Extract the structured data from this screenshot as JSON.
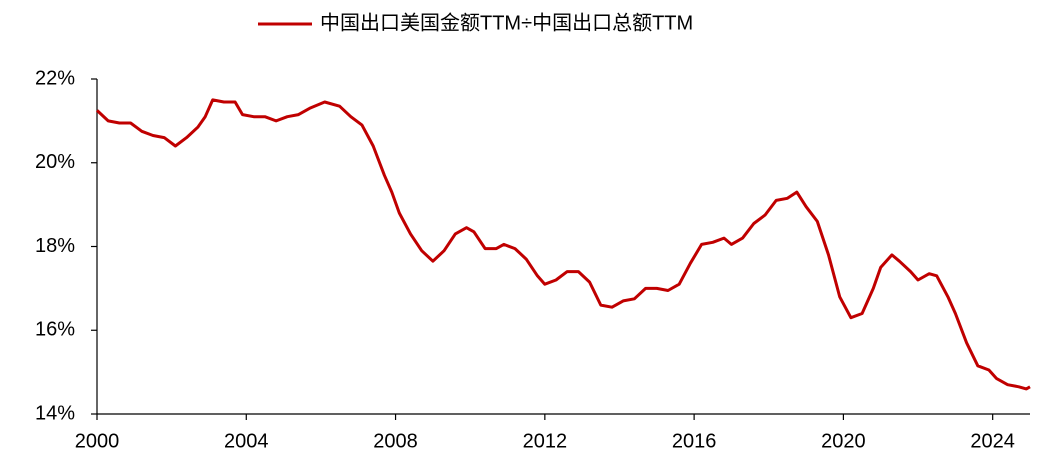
{
  "chart_data": {
    "type": "line",
    "x": [
      2000,
      2000.3,
      2000.6,
      2000.9,
      2001.2,
      2001.5,
      2001.8,
      2002.1,
      2002.4,
      2002.7,
      2002.9,
      2003.1,
      2003.4,
      2003.7,
      2003.9,
      2004.2,
      2004.5,
      2004.8,
      2005.1,
      2005.4,
      2005.7,
      2006.1,
      2006.5,
      2006.8,
      2007.1,
      2007.4,
      2007.7,
      2007.9,
      2008.1,
      2008.4,
      2008.7,
      2009.0,
      2009.3,
      2009.6,
      2009.9,
      2010.1,
      2010.4,
      2010.7,
      2010.9,
      2011.2,
      2011.5,
      2011.8,
      2012.0,
      2012.3,
      2012.6,
      2012.9,
      2013.2,
      2013.5,
      2013.8,
      2014.1,
      2014.4,
      2014.7,
      2015.0,
      2015.3,
      2015.6,
      2015.9,
      2016.2,
      2016.5,
      2016.8,
      2017.0,
      2017.3,
      2017.6,
      2017.9,
      2018.2,
      2018.5,
      2018.75,
      2019.0,
      2019.3,
      2019.6,
      2019.9,
      2020.2,
      2020.5,
      2020.8,
      2021.0,
      2021.3,
      2021.5,
      2021.8,
      2022.0,
      2022.3,
      2022.5,
      2022.8,
      2023.0,
      2023.3,
      2023.6,
      2023.9,
      2024.1,
      2024.4,
      2024.7,
      2024.9,
      2025.0
    ],
    "series": [
      {
        "name": "中国出口美国金额TTM÷中国出口总额TTM",
        "color": "#c00000",
        "values": [
          21.25,
          21.0,
          20.95,
          20.95,
          20.75,
          20.65,
          20.6,
          20.4,
          20.6,
          20.85,
          21.1,
          21.5,
          21.45,
          21.45,
          21.15,
          21.1,
          21.1,
          21.0,
          21.1,
          21.15,
          21.3,
          21.45,
          21.35,
          21.1,
          20.9,
          20.4,
          19.7,
          19.3,
          18.8,
          18.3,
          17.9,
          17.65,
          17.9,
          18.3,
          18.45,
          18.35,
          17.95,
          17.95,
          18.05,
          17.95,
          17.7,
          17.3,
          17.1,
          17.2,
          17.4,
          17.4,
          17.15,
          16.6,
          16.55,
          16.7,
          16.75,
          17.0,
          17.0,
          16.95,
          17.1,
          17.6,
          18.05,
          18.1,
          18.2,
          18.05,
          18.2,
          18.55,
          18.75,
          19.1,
          19.15,
          19.3,
          18.95,
          18.6,
          17.8,
          16.8,
          16.3,
          16.4,
          17.0,
          17.5,
          17.8,
          17.65,
          17.4,
          17.2,
          17.35,
          17.3,
          16.8,
          16.4,
          15.7,
          15.15,
          15.05,
          14.85,
          14.7,
          14.65,
          14.6,
          14.65
        ]
      }
    ],
    "xlim": [
      2000,
      2025
    ],
    "xticks": [
      2000,
      2004,
      2008,
      2012,
      2016,
      2020,
      2024
    ],
    "ylim": [
      14,
      22
    ],
    "yticks": [
      {
        "value": 14,
        "label": "14%"
      },
      {
        "value": 16,
        "label": "16%"
      },
      {
        "value": 18,
        "label": "18%"
      },
      {
        "value": 20,
        "label": "20%"
      },
      {
        "value": 22,
        "label": "22%"
      }
    ],
    "legend": "top"
  }
}
